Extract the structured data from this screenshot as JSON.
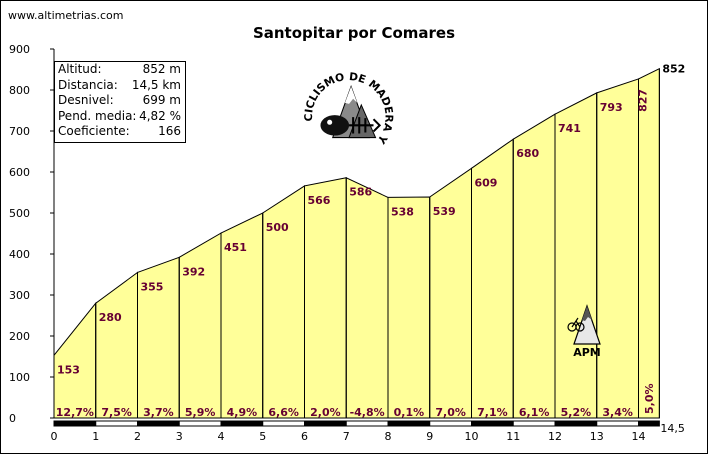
{
  "site": "www.altimetrias.com",
  "stats": [
    {
      "label": "Altitud:",
      "value": "852 m"
    },
    {
      "label": "Distancia:",
      "value": "14,5 km"
    },
    {
      "label": "Desnivel:",
      "value": "699 m"
    },
    {
      "label": "Pend. media:",
      "value": "4,82 %"
    },
    {
      "label": "Coeficiente:",
      "value": "166"
    }
  ],
  "logo": {
    "text": "CICLISMO DE MADERA Y VIENTO"
  },
  "badge": {
    "text": "APM"
  },
  "colors": {
    "fill": "#ffff99",
    "label": "#660033",
    "frame": "#000000"
  },
  "chart_data": {
    "type": "area",
    "title": "Santopitar por Comares",
    "xlabel": "",
    "ylabel": "",
    "x": [
      0,
      1,
      2,
      3,
      4,
      5,
      6,
      7,
      8,
      9,
      10,
      11,
      12,
      13,
      14,
      14.5
    ],
    "altitudes": [
      153,
      280,
      355,
      392,
      451,
      500,
      566,
      586,
      538,
      539,
      609,
      680,
      741,
      793,
      827,
      852
    ],
    "altitude_labels": [
      "153",
      "280",
      "355",
      "392",
      "451",
      "500",
      "566",
      "586",
      "538",
      "539",
      "609",
      "680",
      "741",
      "793",
      "827"
    ],
    "summit_label": "852",
    "gradients": [
      "12,7%",
      "7,5%",
      "3,7%",
      "5,9%",
      "4,9%",
      "6,6%",
      "2,0%",
      "-4,8%",
      "0,1%",
      "7,0%",
      "7,1%",
      "6,1%",
      "5,2%",
      "3,4%",
      "5,0%"
    ],
    "x_ticks": [
      "0",
      "1",
      "2",
      "3",
      "4",
      "5",
      "6",
      "7",
      "8",
      "9",
      "10",
      "11",
      "12",
      "13",
      "14",
      "14,5"
    ],
    "y_ticks": [
      "0",
      "100",
      "200",
      "300",
      "400",
      "500",
      "600",
      "700",
      "800",
      "900"
    ],
    "ylim": [
      0,
      900
    ],
    "xlim": [
      0,
      14.5
    ],
    "grid": false
  }
}
